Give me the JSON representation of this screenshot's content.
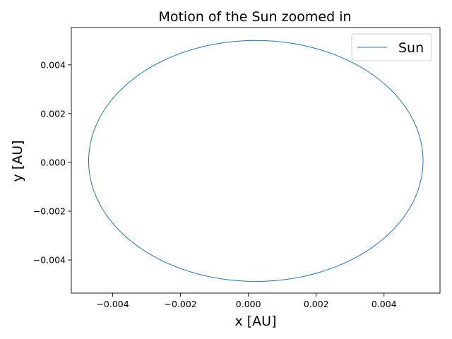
{
  "chart_data": {
    "type": "line",
    "title": "Motion of the Sun zoomed in",
    "xlabel": "x [AU]",
    "ylabel": "y [AU]",
    "xlim": [
      -0.00522,
      0.00565
    ],
    "ylim": [
      -0.00536,
      0.00553
    ],
    "x_ticks": [
      -0.004,
      -0.002,
      0.0,
      0.002,
      0.004
    ],
    "x_tick_labels": [
      "−0.004",
      "−0.002",
      "0.000",
      "0.002",
      "0.004"
    ],
    "y_ticks": [
      -0.004,
      -0.002,
      0.0,
      0.002,
      0.004
    ],
    "y_tick_labels": [
      "−0.004",
      "−0.002",
      "0.000",
      "0.002",
      "0.004"
    ],
    "grid": false,
    "legend": {
      "position": "top-right",
      "entries": [
        "Sun"
      ]
    },
    "series": [
      {
        "name": "Sun",
        "color": "#1f77b4",
        "shape": "ellipse",
        "center": {
          "x": 0.00022,
          "y": 6e-05
        },
        "semi_axis_x": 0.00493,
        "semi_axis_y": 0.00494
      }
    ]
  }
}
